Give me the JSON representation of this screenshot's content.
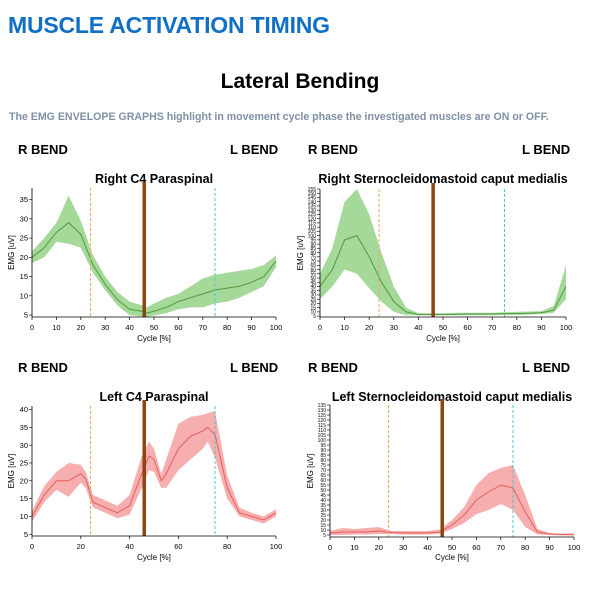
{
  "header": {
    "title": "MUSCLE ACTIVATION TIMING",
    "subtitle": "Lateral Bending",
    "description": "The EMG ENVELOPE GRAPHS highlight in movement cycle phase the investigated muscles are ON or OFF."
  },
  "panels": [
    {
      "left_label": "R BEND",
      "right_label": "L BEND"
    },
    {
      "left_label": "R BEND",
      "right_label": "L BEND"
    },
    {
      "left_label": "R BEND",
      "right_label": "L BEND"
    },
    {
      "left_label": "R BEND",
      "right_label": "L BEND"
    }
  ],
  "colors": {
    "title": "#1170c4",
    "green_line": "#4f9a3f",
    "green_band": "#8fd07f",
    "red_line": "#e0605c",
    "red_band": "#f59a9a",
    "phase_marker": "#8b4513",
    "orange_dashed": "#f3a45c",
    "cyan_dashed": "#49c7d8"
  },
  "chart_data": [
    {
      "type": "area",
      "title": "Right C4 Paraspinal",
      "xlabel": "Cycle [%]",
      "ylabel": "EMG [uV]",
      "xlim": [
        0,
        100
      ],
      "ylim": [
        4.5,
        38
      ],
      "x_ticks": [
        0,
        10,
        20,
        30,
        40,
        50,
        60,
        70,
        80,
        90,
        100
      ],
      "y_ticks": [
        5,
        10,
        15,
        20,
        25,
        30,
        35
      ],
      "color": "green",
      "markers": {
        "solid": 46,
        "orange_dashed": 24,
        "cyan_dashed": 75
      },
      "x": [
        0,
        5,
        10,
        15,
        20,
        25,
        30,
        35,
        40,
        45,
        47,
        50,
        55,
        60,
        65,
        70,
        75,
        80,
        85,
        90,
        95,
        100
      ],
      "mean": [
        20,
        22.5,
        26.5,
        29,
        26,
        18,
        13,
        9,
        6.5,
        6,
        5.5,
        6,
        7,
        8.5,
        9.5,
        10.5,
        11.5,
        12,
        12.5,
        13.5,
        15,
        19
      ],
      "upper": [
        21.5,
        25,
        29,
        36,
        29.5,
        20.5,
        15,
        11,
        8.5,
        7.5,
        7,
        8,
        9.5,
        10.5,
        12.5,
        14.5,
        15.5,
        16,
        16.5,
        17,
        18,
        20.5
      ],
      "lower": [
        18.5,
        20,
        24,
        23.5,
        22.5,
        16,
        11.5,
        7.5,
        5,
        4.7,
        4.6,
        4.9,
        5.5,
        6.5,
        7,
        7,
        8,
        8.5,
        9.5,
        11,
        12.5,
        17.5
      ]
    },
    {
      "type": "area",
      "title": "Right Sternocleidomastoid caput medialis",
      "xlabel": "Cycle [%]",
      "ylabel": "EMG [uV]",
      "xlim": [
        0,
        100
      ],
      "ylim": [
        4,
        155
      ],
      "x_ticks": [
        0,
        10,
        20,
        30,
        40,
        50,
        60,
        70,
        80,
        90,
        100
      ],
      "y_ticks": [
        5,
        10,
        15,
        20,
        25,
        30,
        35,
        40,
        45,
        50,
        55,
        60,
        65,
        70,
        75,
        80,
        85,
        90,
        95,
        100,
        105,
        110,
        115,
        120,
        125,
        130,
        135,
        140,
        145,
        150,
        155
      ],
      "color": "green",
      "markers": {
        "solid": 46,
        "orange_dashed": 24,
        "cyan_dashed": 75
      },
      "x": [
        0,
        5,
        10,
        15,
        20,
        25,
        30,
        35,
        40,
        45,
        50,
        55,
        60,
        65,
        70,
        75,
        80,
        85,
        90,
        95,
        100
      ],
      "mean": [
        40,
        60,
        95,
        100,
        75,
        45,
        22,
        10,
        7,
        7,
        7,
        7,
        7.5,
        7.5,
        7.5,
        8,
        8,
        8.5,
        9,
        12,
        40
      ],
      "upper": [
        55,
        85,
        140,
        155,
        125,
        80,
        40,
        15,
        8.5,
        8.5,
        8.5,
        9,
        9,
        9,
        9,
        9.5,
        10,
        10.5,
        11,
        17,
        65
      ],
      "lower": [
        25,
        40,
        60,
        55,
        38,
        22,
        10,
        6,
        6,
        6,
        6,
        6,
        6,
        6,
        6,
        6.5,
        6.5,
        7,
        7.5,
        9,
        25
      ]
    },
    {
      "type": "area",
      "title": "Left C4 Paraspinal",
      "xlabel": "Cycle [%]",
      "ylabel": "EMG [uV]",
      "xlim": [
        0,
        100
      ],
      "ylim": [
        4.5,
        41
      ],
      "x_ticks": [
        0,
        20,
        40,
        60,
        80,
        100
      ],
      "y_ticks": [
        5,
        10,
        15,
        20,
        25,
        30,
        35,
        40
      ],
      "color": "red",
      "markers": {
        "solid": 46,
        "orange_dashed": 24,
        "cyan_dashed": 75
      },
      "x": [
        0,
        5,
        10,
        15,
        20,
        22,
        25,
        30,
        35,
        40,
        45,
        48,
        50,
        53,
        55,
        60,
        65,
        70,
        72,
        75,
        80,
        85,
        90,
        95,
        100
      ],
      "mean": [
        10,
        16,
        20,
        20,
        22,
        20.5,
        14,
        12.5,
        11,
        13,
        22,
        27,
        26,
        20,
        22,
        29,
        32.5,
        34,
        35,
        33,
        18,
        11,
        10,
        9,
        11
      ],
      "upper": [
        11.5,
        18.5,
        22.5,
        25,
        24.5,
        22.5,
        16,
        14.5,
        13,
        16,
        27,
        31,
        29,
        22,
        26,
        36,
        38,
        38.5,
        39,
        39.5,
        21.5,
        12.5,
        11,
        10,
        12
      ],
      "lower": [
        8.5,
        14,
        17.5,
        15.5,
        19.5,
        18,
        12.5,
        11,
        9.5,
        10.5,
        18,
        23,
        22.5,
        18,
        18,
        23,
        26,
        29,
        31,
        26.5,
        15,
        10,
        9,
        8,
        10
      ]
    },
    {
      "type": "area",
      "title": "Left Sternocleidomastoid caput medialis",
      "xlabel": "Cycle [%]",
      "ylabel": "EMG [uV]",
      "xlim": [
        0,
        100
      ],
      "ylim": [
        3,
        135
      ],
      "x_ticks": [
        0,
        10,
        20,
        30,
        40,
        50,
        60,
        70,
        80,
        90,
        100
      ],
      "y_ticks": [
        5,
        10,
        15,
        20,
        25,
        30,
        35,
        40,
        45,
        50,
        55,
        60,
        65,
        70,
        75,
        80,
        85,
        90,
        95,
        100,
        105,
        110,
        115,
        120,
        125,
        130,
        135
      ],
      "color": "red",
      "markers": {
        "solid": 46,
        "orange_dashed": 24,
        "cyan_dashed": 75
      },
      "x": [
        0,
        5,
        10,
        15,
        20,
        25,
        30,
        35,
        40,
        45,
        50,
        55,
        60,
        65,
        70,
        75,
        80,
        85,
        90,
        95,
        100
      ],
      "mean": [
        7,
        8,
        8,
        8,
        9,
        7.5,
        7,
        7,
        7,
        8,
        15,
        25,
        40,
        48,
        55,
        52,
        28,
        8,
        6,
        5.5,
        5.5
      ],
      "upper": [
        9,
        12,
        11,
        12,
        13,
        9,
        9,
        9,
        9,
        10.5,
        20,
        33,
        55,
        67,
        72,
        75,
        45,
        11,
        7,
        6.5,
        6.5
      ],
      "lower": [
        5,
        5,
        5.5,
        5.5,
        6,
        6,
        5.5,
        5.5,
        5.5,
        6,
        11,
        17,
        26,
        30,
        36,
        30,
        13,
        5.5,
        5,
        4.5,
        4.5
      ]
    }
  ]
}
